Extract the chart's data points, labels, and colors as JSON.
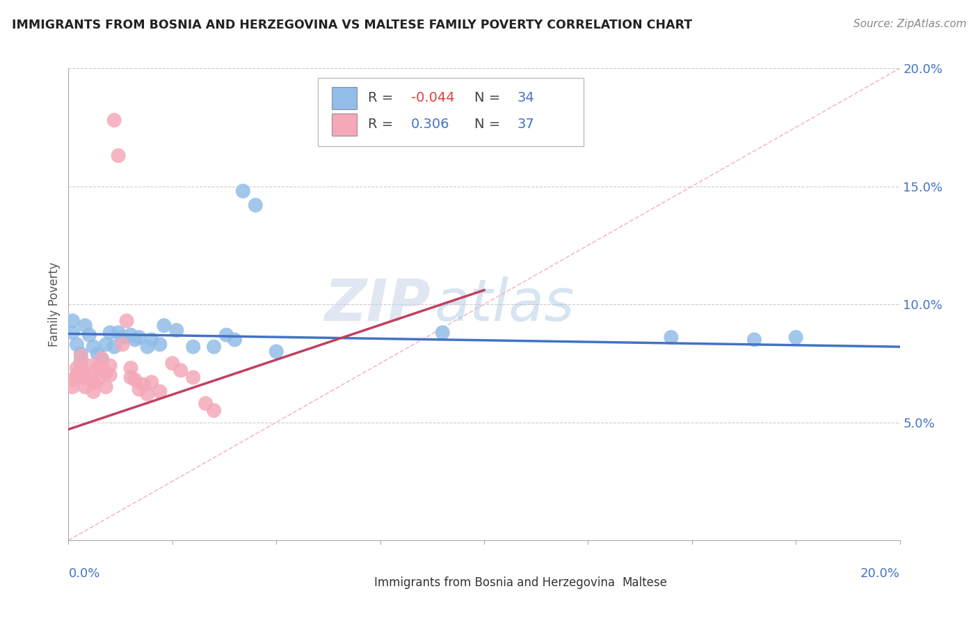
{
  "title": "IMMIGRANTS FROM BOSNIA AND HERZEGOVINA VS MALTESE FAMILY POVERTY CORRELATION CHART",
  "source": "Source: ZipAtlas.com",
  "ylabel": "Family Poverty",
  "xlim": [
    0.0,
    0.2
  ],
  "ylim": [
    0.0,
    0.2
  ],
  "grid_color": "#cccccc",
  "blue_color": "#92bde8",
  "pink_color": "#f4a8b8",
  "blue_line_color": "#4472c4",
  "pink_line_color": "#c04060",
  "diagonal_color": "#f0b0bc",
  "watermark_zip": "ZIP",
  "watermark_atlas": "atlas",
  "legend_r_blue": "-0.044",
  "legend_n_blue": "34",
  "legend_r_pink": "0.306",
  "legend_n_pink": "37",
  "blue_x": [
    0.001,
    0.001,
    0.002,
    0.003,
    0.003,
    0.004,
    0.005,
    0.006,
    0.007,
    0.008,
    0.009,
    0.01,
    0.011,
    0.012,
    0.013,
    0.015,
    0.016,
    0.017,
    0.019,
    0.02,
    0.022,
    0.023,
    0.026,
    0.03,
    0.035,
    0.038,
    0.04,
    0.042,
    0.045,
    0.05,
    0.09,
    0.145,
    0.165,
    0.175
  ],
  "blue_y": [
    0.093,
    0.088,
    0.083,
    0.079,
    0.076,
    0.091,
    0.087,
    0.082,
    0.079,
    0.077,
    0.083,
    0.088,
    0.082,
    0.088,
    0.086,
    0.087,
    0.085,
    0.086,
    0.082,
    0.085,
    0.083,
    0.091,
    0.089,
    0.082,
    0.082,
    0.087,
    0.085,
    0.148,
    0.142,
    0.08,
    0.088,
    0.086,
    0.085,
    0.086
  ],
  "pink_x": [
    0.001,
    0.001,
    0.002,
    0.002,
    0.003,
    0.003,
    0.004,
    0.004,
    0.005,
    0.005,
    0.006,
    0.006,
    0.007,
    0.007,
    0.008,
    0.008,
    0.009,
    0.009,
    0.01,
    0.01,
    0.011,
    0.012,
    0.013,
    0.014,
    0.015,
    0.015,
    0.016,
    0.017,
    0.018,
    0.019,
    0.02,
    0.022,
    0.025,
    0.027,
    0.03,
    0.033,
    0.035
  ],
  "pink_y": [
    0.068,
    0.065,
    0.073,
    0.07,
    0.078,
    0.073,
    0.069,
    0.065,
    0.074,
    0.07,
    0.067,
    0.063,
    0.073,
    0.068,
    0.077,
    0.073,
    0.071,
    0.065,
    0.074,
    0.07,
    0.178,
    0.163,
    0.083,
    0.093,
    0.073,
    0.069,
    0.068,
    0.064,
    0.066,
    0.062,
    0.067,
    0.063,
    0.075,
    0.072,
    0.069,
    0.058,
    0.055
  ]
}
